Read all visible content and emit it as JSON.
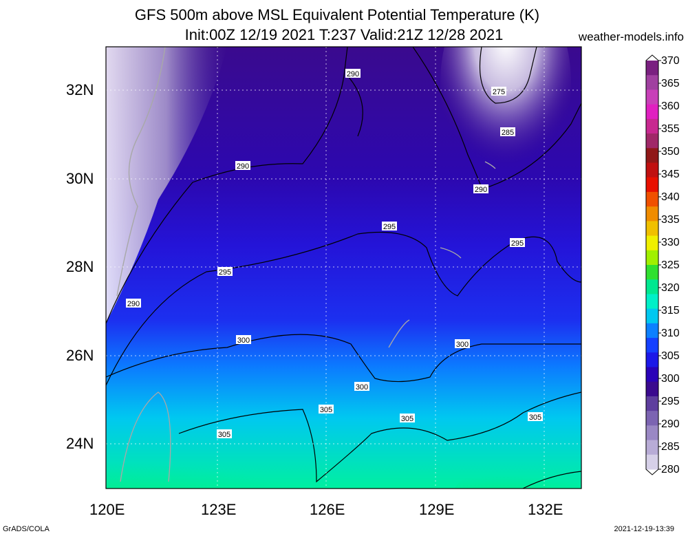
{
  "title_line1": "GFS 500m above MSL Equivalent Potential Temperature (K)",
  "title_line2": "Init:00Z 12/19 2021 T:237 Valid:21Z 12/28 2021",
  "site": "weather-models.info",
  "lat_ticks": [
    "32N",
    "30N",
    "28N",
    "26N",
    "24N"
  ],
  "lon_ticks": [
    "120E",
    "123E",
    "126E",
    "129E",
    "132E"
  ],
  "colorbar": {
    "labels": [
      "370",
      "365",
      "360",
      "355",
      "350",
      "345",
      "340",
      "335",
      "330",
      "325",
      "320",
      "315",
      "310",
      "305",
      "300",
      "295",
      "290",
      "285",
      "280"
    ],
    "colors": [
      "#d6d0e8",
      "#b8acd6",
      "#9a88c4",
      "#7c64b2",
      "#5e3e9e",
      "#3a0a8e",
      "#2a02b8",
      "#1c18e8",
      "#1440ff",
      "#0c80ff",
      "#00c8f0",
      "#00f0c8",
      "#00e890",
      "#30e030",
      "#a0f000",
      "#f0f000",
      "#f0c000",
      "#f08c00",
      "#f05000",
      "#e81000",
      "#c01010",
      "#901818",
      "#a02868",
      "#c82890",
      "#e020c0",
      "#c840b8",
      "#a040a0",
      "#7a2080"
    ]
  },
  "contour_labels": [
    {
      "text": "290"
    },
    {
      "text": "290"
    },
    {
      "text": "290"
    },
    {
      "text": "290"
    },
    {
      "text": "275"
    },
    {
      "text": "285"
    },
    {
      "text": "295"
    },
    {
      "text": "295"
    },
    {
      "text": "295"
    },
    {
      "text": "300"
    },
    {
      "text": "300"
    },
    {
      "text": "300"
    },
    {
      "text": "305"
    },
    {
      "text": "305"
    },
    {
      "text": "305"
    },
    {
      "text": "305"
    }
  ],
  "credit": "GrADS/COLA",
  "stamp": "2021-12-19-13:39"
}
